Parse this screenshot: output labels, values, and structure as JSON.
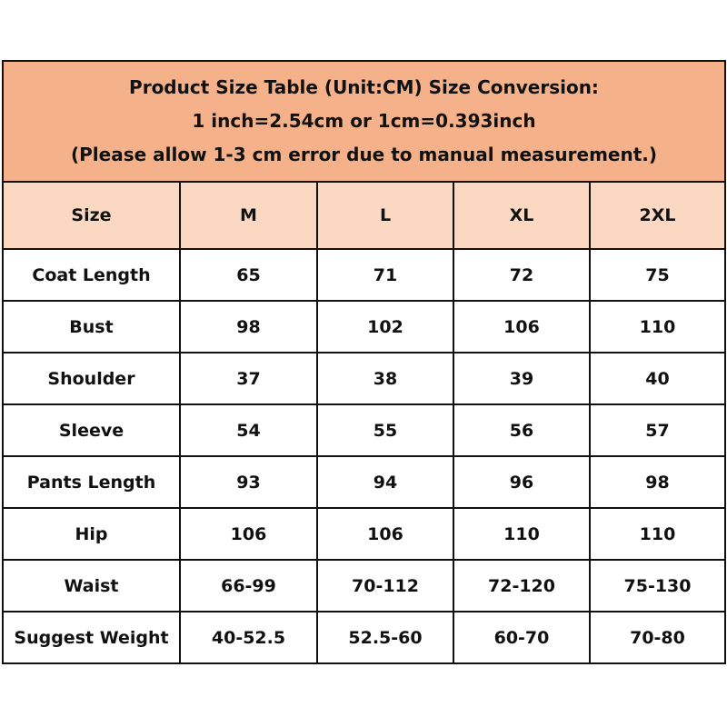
{
  "title": {
    "lines": [
      "Product Size Table (Unit:CM) Size Conversion:",
      "1 inch=2.54cm or 1cm=0.393inch",
      "(Please allow 1-3 cm error due to manual measurement.)"
    ]
  },
  "table": {
    "header": [
      "Size",
      "M",
      "L",
      "XL",
      "2XL"
    ],
    "rows": [
      [
        "Coat Length",
        65,
        71,
        72,
        75
      ],
      [
        "Bust",
        98,
        102,
        106,
        110
      ],
      [
        "Shoulder",
        37,
        38,
        39,
        40
      ],
      [
        "Sleeve",
        54,
        55,
        56,
        57
      ],
      [
        "Pants Length",
        93,
        94,
        96,
        98
      ],
      [
        "Hip",
        106,
        106,
        110,
        110
      ],
      [
        "Waist",
        "66-99",
        "70-112",
        "72-120",
        "75-130"
      ],
      [
        "Suggest Weight",
        "40-52.5",
        "52.5-60",
        "60-70",
        "70-80"
      ]
    ]
  }
}
